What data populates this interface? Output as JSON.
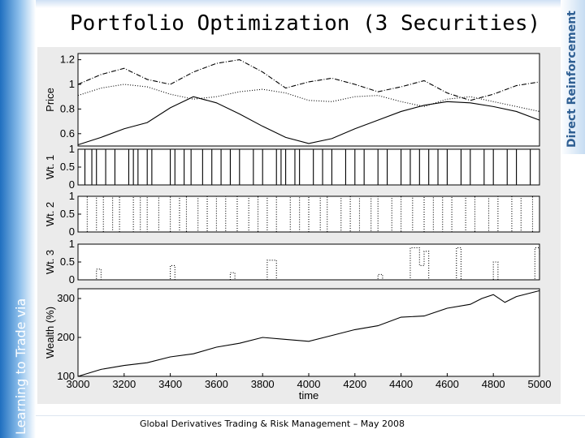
{
  "slide": {
    "title": "Portfolio Optimization (3 Securities)",
    "left_band_text": "Learning to Trade via",
    "right_band_text": "Direct Reinforcement",
    "footer": "Global Derivatives Trading & Risk Management – May 2008",
    "colors": {
      "band_blue": "#1f6fbf",
      "right_text": "#2e5f93",
      "chart_bg": "#ebebeb",
      "plot_bg": "#ffffff",
      "line": "#000000"
    }
  },
  "chart_data": {
    "type": "line",
    "xlabel": "time",
    "x_range": [
      3000,
      5000
    ],
    "x_ticks": [
      3000,
      3200,
      3400,
      3600,
      3800,
      4000,
      4200,
      4400,
      4600,
      4800,
      5000
    ],
    "panels": [
      {
        "id": "price",
        "ylabel": "Price",
        "ylim": [
          0.5,
          1.25
        ],
        "yticks": [
          0.6,
          0.8,
          1,
          1.2
        ],
        "ytick_labels": [
          "0.6",
          "0.8",
          "1",
          "1.2"
        ],
        "series": [
          {
            "style": "solid",
            "x": [
              3000,
              3100,
              3200,
              3300,
              3400,
              3500,
              3600,
              3700,
              3800,
              3900,
              4000,
              4100,
              4200,
              4300,
              4400,
              4500,
              4600,
              4700,
              4800,
              4900,
              5000
            ],
            "y": [
              0.51,
              0.57,
              0.64,
              0.69,
              0.81,
              0.9,
              0.85,
              0.76,
              0.66,
              0.57,
              0.52,
              0.56,
              0.64,
              0.71,
              0.78,
              0.83,
              0.86,
              0.85,
              0.82,
              0.78,
              0.71
            ]
          },
          {
            "style": "dash-dot",
            "x": [
              3000,
              3100,
              3200,
              3300,
              3400,
              3500,
              3600,
              3700,
              3800,
              3900,
              4000,
              4100,
              4200,
              4300,
              4400,
              4500,
              4600,
              4700,
              4800,
              4900,
              5000
            ],
            "y": [
              1.0,
              1.08,
              1.13,
              1.04,
              1.0,
              1.1,
              1.17,
              1.2,
              1.1,
              0.97,
              1.02,
              1.05,
              1.0,
              0.94,
              0.98,
              1.03,
              0.93,
              0.87,
              0.92,
              0.99,
              1.02
            ]
          },
          {
            "style": "dotted",
            "x": [
              3000,
              3100,
              3200,
              3300,
              3400,
              3500,
              3600,
              3700,
              3800,
              3900,
              4000,
              4100,
              4200,
              4300,
              4400,
              4500,
              4600,
              4700,
              4800,
              4900,
              5000
            ],
            "y": [
              0.91,
              0.97,
              1.0,
              0.98,
              0.92,
              0.88,
              0.9,
              0.94,
              0.96,
              0.93,
              0.87,
              0.86,
              0.9,
              0.91,
              0.86,
              0.82,
              0.88,
              0.9,
              0.86,
              0.82,
              0.78
            ]
          }
        ]
      },
      {
        "id": "wt1",
        "ylabel": "Wt. 1",
        "ylim": [
          0,
          1
        ],
        "yticks": [
          0,
          0.5,
          1
        ],
        "ytick_labels": [
          "0",
          "0.5",
          "1"
        ],
        "series": [
          {
            "style": "solid",
            "kind": "step",
            "x": [
              3000,
              3030,
              3060,
              3080,
              3120,
              3160,
              3220,
              3240,
              3260,
              3300,
              3320,
              3400,
              3420,
              3460,
              3490,
              3540,
              3580,
              3620,
              3660,
              3700,
              3760,
              3800,
              3860,
              3880,
              3900,
              3940,
              3960,
              4020,
              4060,
              4100,
              4160,
              4200,
              4240,
              4300,
              4340,
              4400,
              4440,
              4480,
              4520,
              4560,
              4600,
              4660,
              4700,
              4760,
              4800,
              4860,
              4900,
              4960,
              5000
            ],
            "y": [
              0,
              1,
              0,
              1,
              0,
              1,
              0,
              1,
              0,
              1,
              0,
              1,
              0,
              1,
              0,
              1,
              0,
              1,
              0,
              1,
              0,
              1,
              0,
              1,
              0,
              1,
              0,
              1,
              0,
              1,
              0,
              1,
              0,
              1,
              0,
              1,
              0,
              1,
              0,
              1,
              0,
              1,
              0,
              1,
              0,
              1,
              0,
              1,
              1
            ]
          }
        ]
      },
      {
        "id": "wt2",
        "ylabel": "Wt. 2",
        "ylim": [
          0,
          1
        ],
        "yticks": [
          0,
          0.5,
          1
        ],
        "ytick_labels": [
          "0",
          "0.5",
          "1"
        ],
        "series": [
          {
            "style": "dotted",
            "kind": "step",
            "x": [
              3000,
              3040,
              3080,
              3110,
              3150,
              3180,
              3240,
              3270,
              3300,
              3350,
              3400,
              3440,
              3470,
              3520,
              3560,
              3600,
              3640,
              3690,
              3740,
              3780,
              3820,
              3860,
              3920,
              3960,
              4000,
              4050,
              4080,
              4140,
              4180,
              4220,
              4270,
              4300,
              4360,
              4400,
              4450,
              4500,
              4540,
              4580,
              4620,
              4680,
              4720,
              4780,
              4820,
              4880,
              4920,
              4970,
              5000
            ],
            "y": [
              1,
              0,
              1,
              0,
              1,
              0,
              1,
              0,
              1,
              0,
              1,
              0,
              1,
              0,
              1,
              0,
              1,
              0,
              1,
              0,
              1,
              0,
              1,
              0,
              1,
              0,
              1,
              0,
              1,
              0,
              1,
              0,
              1,
              0,
              1,
              0,
              1,
              0,
              1,
              0,
              1,
              0,
              1,
              0,
              1,
              0,
              0
            ]
          }
        ]
      },
      {
        "id": "wt3",
        "ylabel": "Wt. 3",
        "ylim": [
          0,
          1
        ],
        "yticks": [
          0,
          0.5,
          1
        ],
        "ytick_labels": [
          "0",
          "0.5",
          "1"
        ],
        "series": [
          {
            "style": "dotted",
            "kind": "step",
            "x": [
              3000,
              3080,
              3100,
              3400,
              3420,
              3660,
              3680,
              3820,
              3860,
              4300,
              4320,
              4440,
              4480,
              4500,
              4520,
              4640,
              4660,
              4800,
              4820,
              4980,
              5000
            ],
            "y": [
              0,
              0.3,
              0,
              0.4,
              0,
              0.2,
              0,
              0.55,
              0,
              0.15,
              0,
              0.9,
              0.4,
              0.8,
              0,
              0.9,
              0,
              0.5,
              0,
              0.9,
              0.7
            ]
          }
        ]
      },
      {
        "id": "wealth",
        "ylabel": "Wealth (%)",
        "ylim": [
          100,
          325
        ],
        "yticks": [
          100,
          200,
          300
        ],
        "ytick_labels": [
          "100",
          "200",
          "300"
        ],
        "series": [
          {
            "style": "solid",
            "x": [
              3000,
              3100,
              3200,
              3300,
              3400,
              3500,
              3600,
              3700,
              3800,
              3900,
              4000,
              4100,
              4200,
              4300,
              4400,
              4500,
              4600,
              4700,
              4750,
              4800,
              4850,
              4900,
              5000
            ],
            "y": [
              100,
              118,
              128,
              135,
              150,
              158,
              175,
              185,
              200,
              195,
              190,
              205,
              220,
              230,
              252,
              255,
              275,
              285,
              300,
              310,
              290,
              305,
              320
            ]
          }
        ]
      }
    ]
  }
}
